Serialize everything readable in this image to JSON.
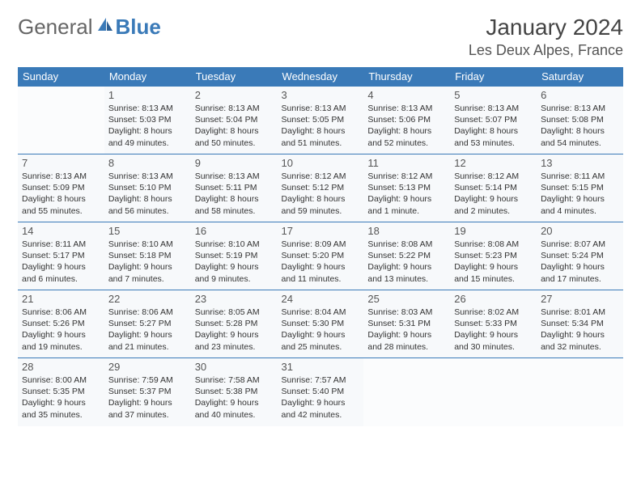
{
  "brand": {
    "part1": "General",
    "part2": "Blue"
  },
  "title": "January 2024",
  "location": "Les Deux Alpes, France",
  "colors": {
    "header_bg": "#3a7ab8",
    "header_text": "#ffffff",
    "cell_bg": "#f7f9fb",
    "border": "#3a7ab8",
    "text": "#333333",
    "title_text": "#444444"
  },
  "weekdays": [
    "Sunday",
    "Monday",
    "Tuesday",
    "Wednesday",
    "Thursday",
    "Friday",
    "Saturday"
  ],
  "weeks": [
    [
      null,
      {
        "n": "1",
        "sr": "8:13 AM",
        "ss": "5:03 PM",
        "dl": "8 hours and 49 minutes."
      },
      {
        "n": "2",
        "sr": "8:13 AM",
        "ss": "5:04 PM",
        "dl": "8 hours and 50 minutes."
      },
      {
        "n": "3",
        "sr": "8:13 AM",
        "ss": "5:05 PM",
        "dl": "8 hours and 51 minutes."
      },
      {
        "n": "4",
        "sr": "8:13 AM",
        "ss": "5:06 PM",
        "dl": "8 hours and 52 minutes."
      },
      {
        "n": "5",
        "sr": "8:13 AM",
        "ss": "5:07 PM",
        "dl": "8 hours and 53 minutes."
      },
      {
        "n": "6",
        "sr": "8:13 AM",
        "ss": "5:08 PM",
        "dl": "8 hours and 54 minutes."
      }
    ],
    [
      {
        "n": "7",
        "sr": "8:13 AM",
        "ss": "5:09 PM",
        "dl": "8 hours and 55 minutes."
      },
      {
        "n": "8",
        "sr": "8:13 AM",
        "ss": "5:10 PM",
        "dl": "8 hours and 56 minutes."
      },
      {
        "n": "9",
        "sr": "8:13 AM",
        "ss": "5:11 PM",
        "dl": "8 hours and 58 minutes."
      },
      {
        "n": "10",
        "sr": "8:12 AM",
        "ss": "5:12 PM",
        "dl": "8 hours and 59 minutes."
      },
      {
        "n": "11",
        "sr": "8:12 AM",
        "ss": "5:13 PM",
        "dl": "9 hours and 1 minute."
      },
      {
        "n": "12",
        "sr": "8:12 AM",
        "ss": "5:14 PM",
        "dl": "9 hours and 2 minutes."
      },
      {
        "n": "13",
        "sr": "8:11 AM",
        "ss": "5:15 PM",
        "dl": "9 hours and 4 minutes."
      }
    ],
    [
      {
        "n": "14",
        "sr": "8:11 AM",
        "ss": "5:17 PM",
        "dl": "9 hours and 6 minutes."
      },
      {
        "n": "15",
        "sr": "8:10 AM",
        "ss": "5:18 PM",
        "dl": "9 hours and 7 minutes."
      },
      {
        "n": "16",
        "sr": "8:10 AM",
        "ss": "5:19 PM",
        "dl": "9 hours and 9 minutes."
      },
      {
        "n": "17",
        "sr": "8:09 AM",
        "ss": "5:20 PM",
        "dl": "9 hours and 11 minutes."
      },
      {
        "n": "18",
        "sr": "8:08 AM",
        "ss": "5:22 PM",
        "dl": "9 hours and 13 minutes."
      },
      {
        "n": "19",
        "sr": "8:08 AM",
        "ss": "5:23 PM",
        "dl": "9 hours and 15 minutes."
      },
      {
        "n": "20",
        "sr": "8:07 AM",
        "ss": "5:24 PM",
        "dl": "9 hours and 17 minutes."
      }
    ],
    [
      {
        "n": "21",
        "sr": "8:06 AM",
        "ss": "5:26 PM",
        "dl": "9 hours and 19 minutes."
      },
      {
        "n": "22",
        "sr": "8:06 AM",
        "ss": "5:27 PM",
        "dl": "9 hours and 21 minutes."
      },
      {
        "n": "23",
        "sr": "8:05 AM",
        "ss": "5:28 PM",
        "dl": "9 hours and 23 minutes."
      },
      {
        "n": "24",
        "sr": "8:04 AM",
        "ss": "5:30 PM",
        "dl": "9 hours and 25 minutes."
      },
      {
        "n": "25",
        "sr": "8:03 AM",
        "ss": "5:31 PM",
        "dl": "9 hours and 28 minutes."
      },
      {
        "n": "26",
        "sr": "8:02 AM",
        "ss": "5:33 PM",
        "dl": "9 hours and 30 minutes."
      },
      {
        "n": "27",
        "sr": "8:01 AM",
        "ss": "5:34 PM",
        "dl": "9 hours and 32 minutes."
      }
    ],
    [
      {
        "n": "28",
        "sr": "8:00 AM",
        "ss": "5:35 PM",
        "dl": "9 hours and 35 minutes."
      },
      {
        "n": "29",
        "sr": "7:59 AM",
        "ss": "5:37 PM",
        "dl": "9 hours and 37 minutes."
      },
      {
        "n": "30",
        "sr": "7:58 AM",
        "ss": "5:38 PM",
        "dl": "9 hours and 40 minutes."
      },
      {
        "n": "31",
        "sr": "7:57 AM",
        "ss": "5:40 PM",
        "dl": "9 hours and 42 minutes."
      },
      null,
      null,
      null
    ]
  ],
  "labels": {
    "sunrise": "Sunrise:",
    "sunset": "Sunset:",
    "daylight": "Daylight:"
  }
}
